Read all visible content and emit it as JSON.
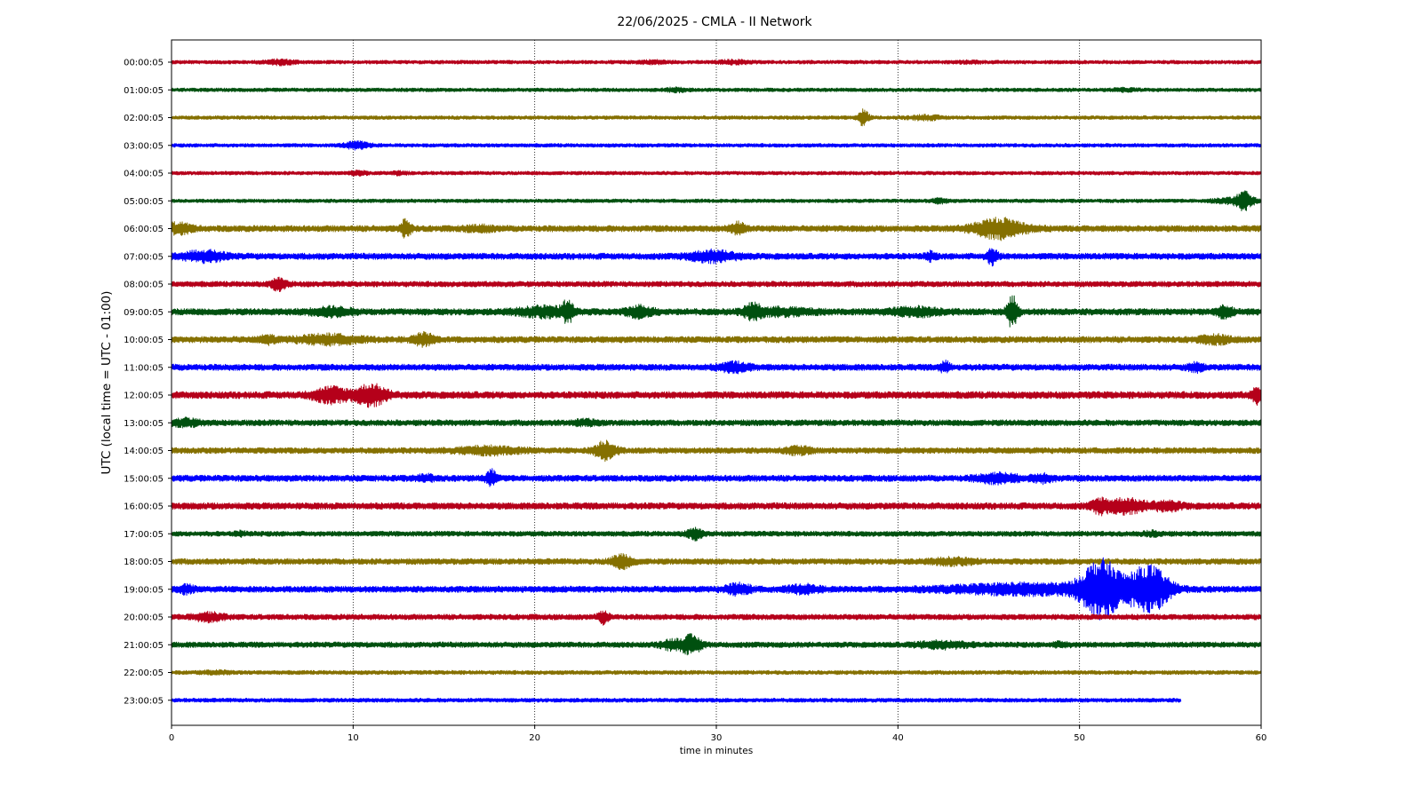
{
  "chart_data": {
    "type": "line",
    "title": "22/06/2025 - CMLA - II Network",
    "xlabel": "time in minutes",
    "ylabel": "UTC (local time = UTC - 01:00)",
    "xlim": [
      0,
      60
    ],
    "xticks": [
      "0",
      "10",
      "20",
      "30",
      "40",
      "50",
      "60"
    ],
    "grid": "vertical dotted lines at each x tick",
    "series_colors": [
      "#b5001a",
      "#00500f",
      "#857000",
      "#0000ff"
    ],
    "rows": [
      {
        "label": "00:00:05",
        "amp": 1.0,
        "end": 60,
        "events": [
          {
            "t": 6.0,
            "a": 2.0,
            "w": 0.6
          },
          {
            "t": 26.5,
            "a": 1.6,
            "w": 0.6
          },
          {
            "t": 31.0,
            "a": 1.8,
            "w": 0.6
          },
          {
            "t": 44.0,
            "a": 1.4,
            "w": 0.5
          }
        ]
      },
      {
        "label": "01:00:05",
        "amp": 1.0,
        "end": 60,
        "events": [
          {
            "t": 27.8,
            "a": 1.8,
            "w": 0.4
          },
          {
            "t": 52.5,
            "a": 1.5,
            "w": 0.5
          }
        ]
      },
      {
        "label": "02:00:05",
        "amp": 1.0,
        "end": 60,
        "events": [
          {
            "t": 38.1,
            "a": 5.0,
            "w": 0.2
          },
          {
            "t": 41.5,
            "a": 2.0,
            "w": 0.6
          }
        ]
      },
      {
        "label": "03:00:05",
        "amp": 1.0,
        "end": 60,
        "events": [
          {
            "t": 10.2,
            "a": 2.6,
            "w": 0.5
          }
        ]
      },
      {
        "label": "04:00:05",
        "amp": 1.0,
        "end": 60,
        "events": [
          {
            "t": 10.3,
            "a": 2.0,
            "w": 0.3
          },
          {
            "t": 12.5,
            "a": 1.6,
            "w": 0.3
          }
        ]
      },
      {
        "label": "05:00:05",
        "amp": 1.0,
        "end": 60,
        "events": [
          {
            "t": 42.3,
            "a": 2.0,
            "w": 0.3
          },
          {
            "t": 58.5,
            "a": 2.2,
            "w": 0.8
          },
          {
            "t": 59.1,
            "a": 5.0,
            "w": 0.3
          }
        ]
      },
      {
        "label": "06:00:05",
        "amp": 1.7,
        "end": 60,
        "events": [
          {
            "t": 0.4,
            "a": 2.4,
            "w": 0.5
          },
          {
            "t": 12.9,
            "a": 3.5,
            "w": 0.2
          },
          {
            "t": 17.0,
            "a": 1.6,
            "w": 0.6
          },
          {
            "t": 31.2,
            "a": 2.5,
            "w": 0.3
          },
          {
            "t": 45.6,
            "a": 3.8,
            "w": 1.0
          }
        ]
      },
      {
        "label": "07:00:05",
        "amp": 1.7,
        "end": 60,
        "events": [
          {
            "t": 1.8,
            "a": 2.4,
            "w": 0.8
          },
          {
            "t": 29.8,
            "a": 2.4,
            "w": 0.9
          },
          {
            "t": 41.8,
            "a": 2.0,
            "w": 0.2
          },
          {
            "t": 45.2,
            "a": 3.4,
            "w": 0.2
          }
        ]
      },
      {
        "label": "08:00:05",
        "amp": 1.5,
        "end": 60,
        "events": [
          {
            "t": 5.9,
            "a": 2.8,
            "w": 0.3
          }
        ]
      },
      {
        "label": "09:00:05",
        "amp": 1.8,
        "end": 60,
        "events": [
          {
            "t": 8.8,
            "a": 2.0,
            "w": 0.8
          },
          {
            "t": 20.5,
            "a": 2.2,
            "w": 1.0
          },
          {
            "t": 21.8,
            "a": 4.0,
            "w": 0.2
          },
          {
            "t": 25.8,
            "a": 2.4,
            "w": 0.5
          },
          {
            "t": 32.0,
            "a": 3.0,
            "w": 0.3
          },
          {
            "t": 33.5,
            "a": 1.8,
            "w": 1.2
          },
          {
            "t": 41.0,
            "a": 2.0,
            "w": 1.0
          },
          {
            "t": 46.3,
            "a": 5.5,
            "w": 0.2
          },
          {
            "t": 58.0,
            "a": 2.4,
            "w": 0.3
          }
        ]
      },
      {
        "label": "10:00:05",
        "amp": 1.7,
        "end": 60,
        "events": [
          {
            "t": 5.3,
            "a": 2.0,
            "w": 0.3
          },
          {
            "t": 8.6,
            "a": 2.2,
            "w": 1.2
          },
          {
            "t": 13.9,
            "a": 2.6,
            "w": 0.4
          },
          {
            "t": 57.5,
            "a": 2.0,
            "w": 0.6
          }
        ]
      },
      {
        "label": "11:00:05",
        "amp": 1.7,
        "end": 60,
        "events": [
          {
            "t": 31.0,
            "a": 2.2,
            "w": 0.6
          },
          {
            "t": 42.6,
            "a": 2.4,
            "w": 0.2
          },
          {
            "t": 56.4,
            "a": 2.0,
            "w": 0.3
          }
        ]
      },
      {
        "label": "12:00:05",
        "amp": 1.9,
        "end": 60,
        "events": [
          {
            "t": 8.8,
            "a": 2.8,
            "w": 0.7
          },
          {
            "t": 11.0,
            "a": 3.6,
            "w": 0.6
          },
          {
            "t": 59.8,
            "a": 3.0,
            "w": 0.2
          }
        ]
      },
      {
        "label": "13:00:05",
        "amp": 1.6,
        "end": 60,
        "events": [
          {
            "t": 0.8,
            "a": 2.0,
            "w": 0.5
          },
          {
            "t": 22.8,
            "a": 1.6,
            "w": 0.5
          }
        ]
      },
      {
        "label": "14:00:05",
        "amp": 1.6,
        "end": 60,
        "events": [
          {
            "t": 17.5,
            "a": 2.0,
            "w": 1.2
          },
          {
            "t": 23.9,
            "a": 4.0,
            "w": 0.4
          },
          {
            "t": 34.5,
            "a": 2.0,
            "w": 0.5
          }
        ]
      },
      {
        "label": "15:00:05",
        "amp": 1.7,
        "end": 60,
        "events": [
          {
            "t": 14.0,
            "a": 1.8,
            "w": 0.3
          },
          {
            "t": 17.6,
            "a": 3.2,
            "w": 0.2
          },
          {
            "t": 45.5,
            "a": 2.2,
            "w": 0.8
          },
          {
            "t": 48.0,
            "a": 2.0,
            "w": 0.4
          }
        ]
      },
      {
        "label": "16:00:05",
        "amp": 1.8,
        "end": 60,
        "events": [
          {
            "t": 51.1,
            "a": 2.6,
            "w": 0.3
          },
          {
            "t": 52.5,
            "a": 2.8,
            "w": 0.8
          },
          {
            "t": 54.8,
            "a": 2.0,
            "w": 0.6
          }
        ]
      },
      {
        "label": "17:00:05",
        "amp": 1.4,
        "end": 60,
        "events": [
          {
            "t": 3.8,
            "a": 1.6,
            "w": 0.2
          },
          {
            "t": 28.8,
            "a": 2.8,
            "w": 0.3
          },
          {
            "t": 54.0,
            "a": 1.6,
            "w": 0.4
          }
        ]
      },
      {
        "label": "18:00:05",
        "amp": 1.6,
        "end": 60,
        "events": [
          {
            "t": 24.8,
            "a": 3.0,
            "w": 0.4
          },
          {
            "t": 43.0,
            "a": 1.8,
            "w": 0.8
          }
        ]
      },
      {
        "label": "19:00:05",
        "amp": 1.7,
        "end": 60,
        "events": [
          {
            "t": 0.8,
            "a": 2.0,
            "w": 0.3
          },
          {
            "t": 31.2,
            "a": 2.4,
            "w": 0.5
          },
          {
            "t": 34.8,
            "a": 2.0,
            "w": 0.6
          },
          {
            "t": 47.0,
            "a": 2.4,
            "w": 3.0
          },
          {
            "t": 51.2,
            "a": 9.5,
            "w": 0.8
          },
          {
            "t": 53.8,
            "a": 8.0,
            "w": 0.8
          }
        ]
      },
      {
        "label": "20:00:05",
        "amp": 1.5,
        "end": 60,
        "events": [
          {
            "t": 2.0,
            "a": 2.2,
            "w": 0.6
          },
          {
            "t": 23.8,
            "a": 3.0,
            "w": 0.2
          }
        ]
      },
      {
        "label": "21:00:05",
        "amp": 1.5,
        "end": 60,
        "events": [
          {
            "t": 27.5,
            "a": 2.4,
            "w": 0.4
          },
          {
            "t": 28.6,
            "a": 4.0,
            "w": 0.4
          },
          {
            "t": 42.5,
            "a": 2.0,
            "w": 1.0
          },
          {
            "t": 49.0,
            "a": 1.6,
            "w": 0.3
          }
        ]
      },
      {
        "label": "22:00:05",
        "amp": 1.1,
        "end": 60,
        "events": [
          {
            "t": 2.5,
            "a": 1.5,
            "w": 0.6
          }
        ]
      },
      {
        "label": "23:00:05",
        "amp": 1.1,
        "end": 55.6,
        "events": []
      }
    ]
  }
}
